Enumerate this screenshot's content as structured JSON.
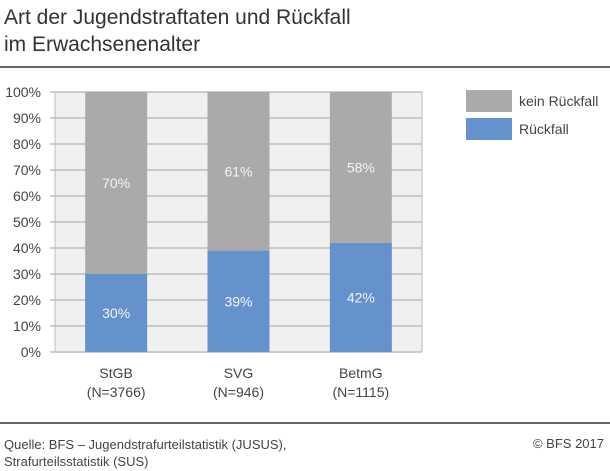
{
  "title": [
    "Art der Jugendstraftaten und Rückfall",
    "im Erwachsenenalter"
  ],
  "source": [
    "Quelle: BFS – Jugendstrafurteilstatistik (JUSUS),",
    "Strafurteilsstatistik (SUS)"
  ],
  "copyright": "© BFS 2017",
  "chart_data": {
    "type": "bar",
    "stacked": true,
    "categories": [
      [
        "StGB",
        "(N=3766)"
      ],
      [
        "SVG",
        "(N=946)"
      ],
      [
        "BetmG",
        "(N=1115)"
      ]
    ],
    "series": [
      {
        "name": "Rückfall",
        "values": [
          30,
          39,
          42
        ],
        "labels": [
          "30%",
          "39%",
          "42%"
        ],
        "color": "#6591cc"
      },
      {
        "name": "kein Rückfall",
        "values": [
          70,
          61,
          58
        ],
        "labels": [
          "70%",
          "61%",
          "58%"
        ],
        "color": "#aaaaaa"
      }
    ],
    "yticks": [
      "0%",
      "10%",
      "20%",
      "30%",
      "40%",
      "50%",
      "60%",
      "70%",
      "80%",
      "90%",
      "100%"
    ],
    "ylim": [
      0,
      100
    ],
    "grid": true,
    "legend": "top-right",
    "legend_order": [
      "kein Rückfall",
      "Rückfall"
    ],
    "plot_background": "#f0f0f0"
  }
}
